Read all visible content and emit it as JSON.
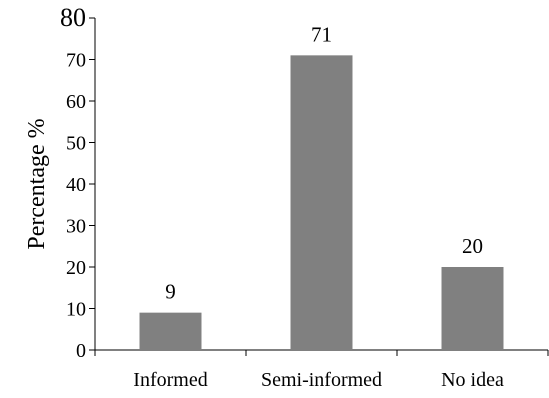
{
  "chart_data": {
    "type": "bar",
    "title": "",
    "xlabel": "",
    "ylabel": "Percentage %",
    "categories": [
      "Informed",
      "Semi-informed",
      "No idea"
    ],
    "values": [
      9,
      71,
      20
    ],
    "ylim": [
      0,
      80
    ],
    "yticks": [
      0,
      10,
      20,
      30,
      40,
      50,
      60,
      70,
      80
    ],
    "grid": false,
    "legend": "none",
    "bar_color": "#808080"
  }
}
